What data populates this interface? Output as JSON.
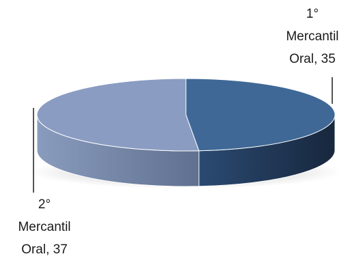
{
  "chart_data": {
    "type": "pie",
    "style": "3d",
    "title": "",
    "slices": [
      {
        "label_lines": [
          "1°",
          "Mercantil",
          "Oral, 35"
        ],
        "category": "1° Mercantil Oral",
        "value": 35,
        "color": "#3f6896"
      },
      {
        "label_lines": [
          "2°",
          "Mercantil",
          "Oral, 37"
        ],
        "category": "2° Mercantil Oral",
        "value": 37,
        "color": "#8a9cc2"
      }
    ],
    "legend": "none"
  }
}
